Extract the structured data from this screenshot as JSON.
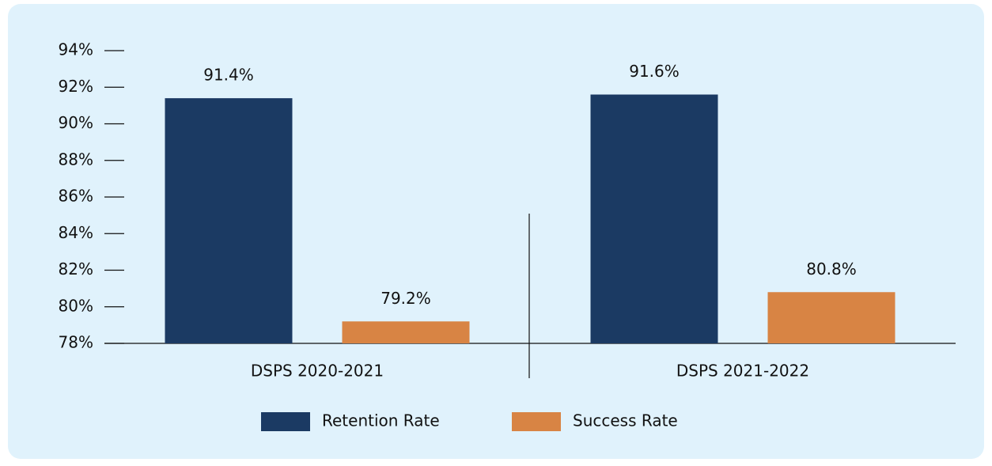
{
  "chart_data": {
    "type": "bar",
    "categories": [
      "DSPS 2020-2021",
      "DSPS 2021-2022"
    ],
    "series": [
      {
        "name": "Retention Rate",
        "color": "#1b3a63",
        "values": [
          91.4,
          91.6
        ],
        "value_labels": [
          "91.4%",
          "91.6%"
        ]
      },
      {
        "name": "Success Rate",
        "color": "#d88444",
        "values": [
          79.2,
          80.8
        ],
        "value_labels": [
          "79.2%",
          "80.8%"
        ]
      }
    ],
    "ylim": [
      78,
      94
    ],
    "yticks": [
      {
        "value": 78,
        "label": "78%"
      },
      {
        "value": 80,
        "label": "80%"
      },
      {
        "value": 82,
        "label": "82%"
      },
      {
        "value": 84,
        "label": "84%"
      },
      {
        "value": 86,
        "label": "86%"
      },
      {
        "value": 88,
        "label": "88%"
      },
      {
        "value": 90,
        "label": "90%"
      },
      {
        "value": 92,
        "label": "92%"
      },
      {
        "value": 94,
        "label": "94%"
      }
    ],
    "legend": "bottom"
  }
}
